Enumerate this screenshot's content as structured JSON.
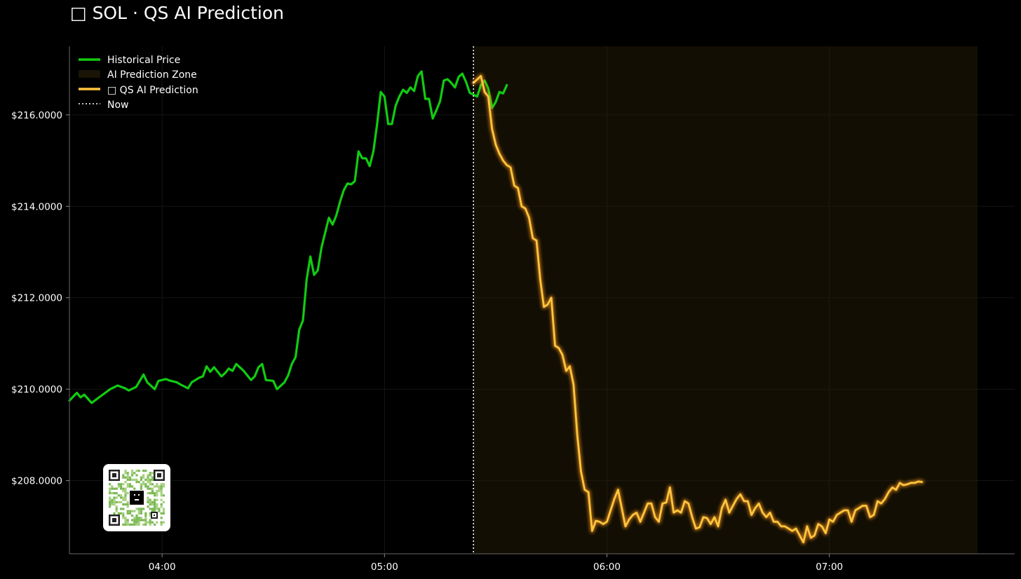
{
  "title": "□ SOL · QS AI Prediction",
  "colors": {
    "background": "#000000",
    "historical": "#11cc11",
    "prediction": "#ffc53d",
    "prediction_glow": "#ff9a1f",
    "zone_fill": "#2a2208",
    "now_line": "#ffffff",
    "axis": "#555555",
    "grid": "#151515"
  },
  "legend": {
    "placement": "top-left",
    "items": [
      {
        "label": "Historical Price",
        "kind": "line",
        "color": "#11cc11"
      },
      {
        "label": "AI Prediction Zone",
        "kind": "patch",
        "color": "#2a2208"
      },
      {
        "label": "□ QS AI Prediction",
        "kind": "line",
        "color": "#ffc53d"
      },
      {
        "label": "Now",
        "kind": "dotted",
        "color": "#ffffff"
      }
    ]
  },
  "qr_code": {
    "icon": "qr-code-icon"
  },
  "chart_data": {
    "type": "line",
    "x_unit": "time",
    "xlim": [
      "03:35",
      "07:50"
    ],
    "ylim": [
      206.4,
      217.5
    ],
    "x_ticks": [
      "04:00",
      "05:00",
      "06:00",
      "07:00"
    ],
    "y_ticks": [
      "$208.0000",
      "$210.0000",
      "$212.0000",
      "$214.0000",
      "$216.0000"
    ],
    "y_tick_values": [
      208,
      210,
      212,
      214,
      216
    ],
    "grid": true,
    "now": "05:24",
    "prediction_zone": [
      "05:24",
      "07:40"
    ],
    "series": [
      {
        "name": "Historical Price",
        "points": [
          [
            "03:35",
            209.75
          ],
          [
            "03:37",
            209.92
          ],
          [
            "03:38",
            209.82
          ],
          [
            "03:39",
            209.88
          ],
          [
            "03:41",
            209.7
          ],
          [
            "03:43",
            209.82
          ],
          [
            "03:44",
            209.88
          ],
          [
            "03:46",
            210.0
          ],
          [
            "03:48",
            210.08
          ],
          [
            "03:50",
            210.02
          ],
          [
            "03:51",
            209.97
          ],
          [
            "03:53",
            210.05
          ],
          [
            "03:55",
            210.32
          ],
          [
            "03:56",
            210.15
          ],
          [
            "03:58",
            210.0
          ],
          [
            "03:59",
            210.18
          ],
          [
            "04:01",
            210.22
          ],
          [
            "04:02",
            210.19
          ],
          [
            "04:04",
            210.15
          ],
          [
            "04:05",
            210.1
          ],
          [
            "04:07",
            210.02
          ],
          [
            "04:08",
            210.15
          ],
          [
            "04:10",
            210.25
          ],
          [
            "04:11",
            210.28
          ],
          [
            "04:12",
            210.5
          ],
          [
            "04:13",
            210.38
          ],
          [
            "04:14",
            210.48
          ],
          [
            "04:16",
            210.28
          ],
          [
            "04:17",
            210.35
          ],
          [
            "04:18",
            210.45
          ],
          [
            "04:19",
            210.4
          ],
          [
            "04:20",
            210.55
          ],
          [
            "04:22",
            210.4
          ],
          [
            "04:24",
            210.2
          ],
          [
            "04:25",
            210.28
          ],
          [
            "04:26",
            210.48
          ],
          [
            "04:27",
            210.55
          ],
          [
            "04:28",
            210.2
          ],
          [
            "04:30",
            210.18
          ],
          [
            "04:31",
            210.0
          ],
          [
            "04:33",
            210.15
          ],
          [
            "04:34",
            210.3
          ],
          [
            "04:35",
            210.55
          ],
          [
            "04:36",
            210.7
          ],
          [
            "04:37",
            211.3
          ],
          [
            "04:38",
            211.5
          ],
          [
            "04:39",
            212.4
          ],
          [
            "04:40",
            212.9
          ],
          [
            "04:41",
            212.5
          ],
          [
            "04:42",
            212.6
          ],
          [
            "04:43",
            213.1
          ],
          [
            "04:45",
            213.75
          ],
          [
            "04:46",
            213.6
          ],
          [
            "04:47",
            213.8
          ],
          [
            "04:48",
            214.1
          ],
          [
            "04:49",
            214.35
          ],
          [
            "04:50",
            214.5
          ],
          [
            "04:51",
            214.48
          ],
          [
            "04:52",
            214.55
          ],
          [
            "04:53",
            215.2
          ],
          [
            "04:54",
            215.05
          ],
          [
            "04:55",
            215.05
          ],
          [
            "04:56",
            214.88
          ],
          [
            "04:57",
            215.2
          ],
          [
            "04:58",
            215.8
          ],
          [
            "04:59",
            216.5
          ],
          [
            "05:00",
            216.4
          ],
          [
            "05:01",
            215.8
          ],
          [
            "05:02",
            215.8
          ],
          [
            "05:03",
            216.2
          ],
          [
            "05:04",
            216.4
          ],
          [
            "05:05",
            216.55
          ],
          [
            "05:06",
            216.48
          ],
          [
            "05:07",
            216.6
          ],
          [
            "05:08",
            216.52
          ],
          [
            "05:09",
            216.85
          ],
          [
            "05:10",
            216.95
          ],
          [
            "05:11",
            216.35
          ],
          [
            "05:12",
            216.35
          ],
          [
            "05:13",
            215.92
          ],
          [
            "05:14",
            216.1
          ],
          [
            "05:15",
            216.3
          ],
          [
            "05:16",
            216.75
          ],
          [
            "05:17",
            216.78
          ],
          [
            "05:18",
            216.7
          ],
          [
            "05:19",
            216.6
          ],
          [
            "05:20",
            216.83
          ],
          [
            "05:21",
            216.9
          ],
          [
            "05:22",
            216.72
          ],
          [
            "05:23",
            216.48
          ],
          [
            "05:25",
            216.4
          ],
          [
            "05:26",
            216.65
          ],
          [
            "05:27",
            216.75
          ],
          [
            "05:28",
            216.58
          ],
          [
            "05:29",
            216.15
          ],
          [
            "05:30",
            216.28
          ],
          [
            "05:31",
            216.5
          ],
          [
            "05:32",
            216.47
          ],
          [
            "05:33",
            216.65
          ]
        ]
      },
      {
        "name": "□ QS AI Prediction",
        "points": [
          [
            "05:24",
            216.7
          ],
          [
            "05:26",
            216.85
          ],
          [
            "05:27",
            216.5
          ],
          [
            "05:28",
            216.4
          ],
          [
            "05:29",
            215.7
          ],
          [
            "05:30",
            215.35
          ],
          [
            "05:31",
            215.15
          ],
          [
            "05:32",
            215.0
          ],
          [
            "05:33",
            214.9
          ],
          [
            "05:34",
            214.85
          ],
          [
            "05:35",
            214.45
          ],
          [
            "05:36",
            214.4
          ],
          [
            "05:37",
            214.0
          ],
          [
            "05:38",
            213.95
          ],
          [
            "05:39",
            213.75
          ],
          [
            "05:40",
            213.3
          ],
          [
            "05:41",
            213.25
          ],
          [
            "05:42",
            212.4
          ],
          [
            "05:43",
            211.8
          ],
          [
            "05:44",
            211.85
          ],
          [
            "05:45",
            212.0
          ],
          [
            "05:46",
            210.95
          ],
          [
            "05:47",
            210.9
          ],
          [
            "05:48",
            210.75
          ],
          [
            "05:49",
            210.4
          ],
          [
            "05:50",
            210.5
          ],
          [
            "05:51",
            210.1
          ],
          [
            "05:52",
            209.0
          ],
          [
            "05:53",
            208.2
          ],
          [
            "05:54",
            207.8
          ],
          [
            "05:55",
            207.75
          ],
          [
            "05:56",
            206.9
          ],
          [
            "05:57",
            207.12
          ],
          [
            "05:58",
            207.1
          ],
          [
            "05:59",
            207.05
          ],
          [
            "06:00",
            207.1
          ],
          [
            "06:02",
            207.6
          ],
          [
            "06:03",
            207.8
          ],
          [
            "06:05",
            207.0
          ],
          [
            "06:06",
            207.15
          ],
          [
            "06:07",
            207.25
          ],
          [
            "06:08",
            207.3
          ],
          [
            "06:09",
            207.1
          ],
          [
            "06:10",
            207.3
          ],
          [
            "06:11",
            207.5
          ],
          [
            "06:12",
            207.5
          ],
          [
            "06:13",
            207.2
          ],
          [
            "06:14",
            207.1
          ],
          [
            "06:15",
            207.5
          ],
          [
            "06:16",
            207.52
          ],
          [
            "06:17",
            207.85
          ],
          [
            "06:18",
            207.3
          ],
          [
            "06:19",
            207.35
          ],
          [
            "06:20",
            207.3
          ],
          [
            "06:21",
            207.55
          ],
          [
            "06:22",
            207.5
          ],
          [
            "06:23",
            207.2
          ],
          [
            "06:24",
            206.95
          ],
          [
            "06:25",
            206.98
          ],
          [
            "06:26",
            207.2
          ],
          [
            "06:27",
            207.18
          ],
          [
            "06:28",
            207.05
          ],
          [
            "06:29",
            207.2
          ],
          [
            "06:30",
            207.0
          ],
          [
            "06:31",
            207.4
          ],
          [
            "06:32",
            207.58
          ],
          [
            "06:33",
            207.3
          ],
          [
            "06:34",
            207.45
          ],
          [
            "06:35",
            207.6
          ],
          [
            "06:36",
            207.7
          ],
          [
            "06:37",
            207.55
          ],
          [
            "06:38",
            207.55
          ],
          [
            "06:39",
            207.25
          ],
          [
            "06:40",
            207.4
          ],
          [
            "06:41",
            207.5
          ],
          [
            "06:42",
            207.3
          ],
          [
            "06:43",
            207.2
          ],
          [
            "06:44",
            207.3
          ],
          [
            "06:45",
            207.1
          ],
          [
            "06:46",
            207.1
          ],
          [
            "06:47",
            207.0
          ],
          [
            "06:48",
            207.0
          ],
          [
            "06:49",
            206.95
          ],
          [
            "06:50",
            206.9
          ],
          [
            "06:51",
            206.95
          ],
          [
            "06:52",
            206.8
          ],
          [
            "06:53",
            206.65
          ],
          [
            "06:54",
            207.0
          ],
          [
            "06:55",
            206.75
          ],
          [
            "06:56",
            206.8
          ],
          [
            "06:57",
            207.05
          ],
          [
            "06:58",
            207.0
          ],
          [
            "06:59",
            206.85
          ],
          [
            "07:00",
            207.15
          ],
          [
            "07:01",
            207.1
          ],
          [
            "07:02",
            207.25
          ],
          [
            "07:03",
            207.3
          ],
          [
            "07:04",
            207.35
          ],
          [
            "07:05",
            207.35
          ],
          [
            "07:06",
            207.1
          ],
          [
            "07:07",
            207.35
          ],
          [
            "07:08",
            207.4
          ],
          [
            "07:09",
            207.45
          ],
          [
            "07:10",
            207.45
          ],
          [
            "07:11",
            207.2
          ],
          [
            "07:12",
            207.25
          ],
          [
            "07:13",
            207.55
          ],
          [
            "07:14",
            207.5
          ],
          [
            "07:15",
            207.6
          ],
          [
            "07:16",
            207.75
          ],
          [
            "07:17",
            207.85
          ],
          [
            "07:18",
            207.8
          ],
          [
            "07:19",
            207.95
          ],
          [
            "07:20",
            207.9
          ],
          [
            "07:21",
            207.92
          ],
          [
            "07:22",
            207.95
          ],
          [
            "07:23",
            207.95
          ],
          [
            "07:24",
            207.98
          ],
          [
            "07:25",
            207.97
          ]
        ]
      }
    ]
  }
}
